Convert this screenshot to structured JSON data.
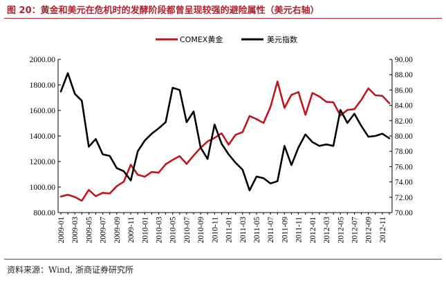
{
  "header": {
    "title": "图 20：黄金和美元在危机时的发酵阶段都曾呈现较强的避险属性（美元右轴）"
  },
  "footer": {
    "source": "资料来源：Wind, 浙商证券研究所"
  },
  "chart_data": {
    "type": "line",
    "title": "",
    "x": [
      "2009-01",
      "2009-02",
      "2009-03",
      "2009-04",
      "2009-05",
      "2009-06",
      "2009-07",
      "2009-08",
      "2009-09",
      "2009-10",
      "2009-11",
      "2009-12",
      "2010-01",
      "2010-02",
      "2010-03",
      "2010-04",
      "2010-05",
      "2010-06",
      "2010-07",
      "2010-08",
      "2010-09",
      "2010-10",
      "2010-11",
      "2010-12",
      "2011-01",
      "2011-02",
      "2011-03",
      "2011-04",
      "2011-05",
      "2011-06",
      "2011-07",
      "2011-08",
      "2011-09",
      "2011-10",
      "2011-11",
      "2011-12",
      "2012-01",
      "2012-02",
      "2012-03",
      "2012-04",
      "2012-05",
      "2012-06",
      "2012-07",
      "2012-08",
      "2012-09",
      "2012-10",
      "2012-11",
      "2012-12"
    ],
    "x_tick_labels": [
      "2009-01",
      "2009-03",
      "2009-05",
      "2009-07",
      "2009-09",
      "2009-11",
      "2010-01",
      "2010-03",
      "2010-05",
      "2010-07",
      "2010-09",
      "2010-11",
      "2011-01",
      "2011-03",
      "2011-05",
      "2011-07",
      "2011-09",
      "2011-11",
      "2012-01",
      "2012-03",
      "2012-05",
      "2012-07",
      "2012-09",
      "2012-11"
    ],
    "series": [
      {
        "name": "COMEX黄金",
        "axis": "left",
        "color": "#c0141c",
        "values": [
          926,
          940,
          922,
          893,
          978,
          928,
          955,
          950,
          1007,
          1042,
          1175,
          1097,
          1081,
          1118,
          1113,
          1179,
          1213,
          1242,
          1181,
          1247,
          1307,
          1358,
          1385,
          1421,
          1332,
          1409,
          1430,
          1556,
          1532,
          1502,
          1628,
          1827,
          1620,
          1722,
          1744,
          1566,
          1737,
          1709,
          1667,
          1664,
          1560,
          1604,
          1610,
          1683,
          1773,
          1719,
          1714,
          1657
        ]
      },
      {
        "name": "美元指数",
        "axis": "right",
        "color": "#000000",
        "values": [
          85.8,
          88.2,
          85.5,
          84.6,
          78.6,
          79.6,
          77.6,
          77.4,
          75.8,
          75.4,
          74.2,
          78.0,
          79.4,
          80.3,
          81.0,
          81.8,
          86.3,
          86.0,
          81.8,
          83.2,
          78.5,
          77.0,
          81.5,
          79.0,
          77.6,
          76.5,
          75.6,
          72.9,
          74.7,
          74.5,
          73.8,
          74.1,
          78.7,
          76.2,
          78.5,
          80.2,
          79.2,
          78.7,
          78.9,
          78.7,
          83.4,
          81.7,
          82.9,
          81.3,
          79.9,
          80.0,
          80.3,
          79.7
        ]
      }
    ],
    "y_left": {
      "ylim": [
        800,
        2000
      ],
      "ticks": [
        "800.00",
        "1000.00",
        "1200.00",
        "1400.00",
        "1600.00",
        "1800.00",
        "2000.00"
      ]
    },
    "y_right": {
      "ylim": [
        70,
        90
      ],
      "ticks": [
        "70.00",
        "72.00",
        "74.00",
        "76.00",
        "78.00",
        "80.00",
        "82.00",
        "84.00",
        "86.00",
        "88.00",
        "90.00"
      ]
    },
    "grid": false,
    "legend_position": "top-center",
    "xlabel": "",
    "ylabel": ""
  }
}
